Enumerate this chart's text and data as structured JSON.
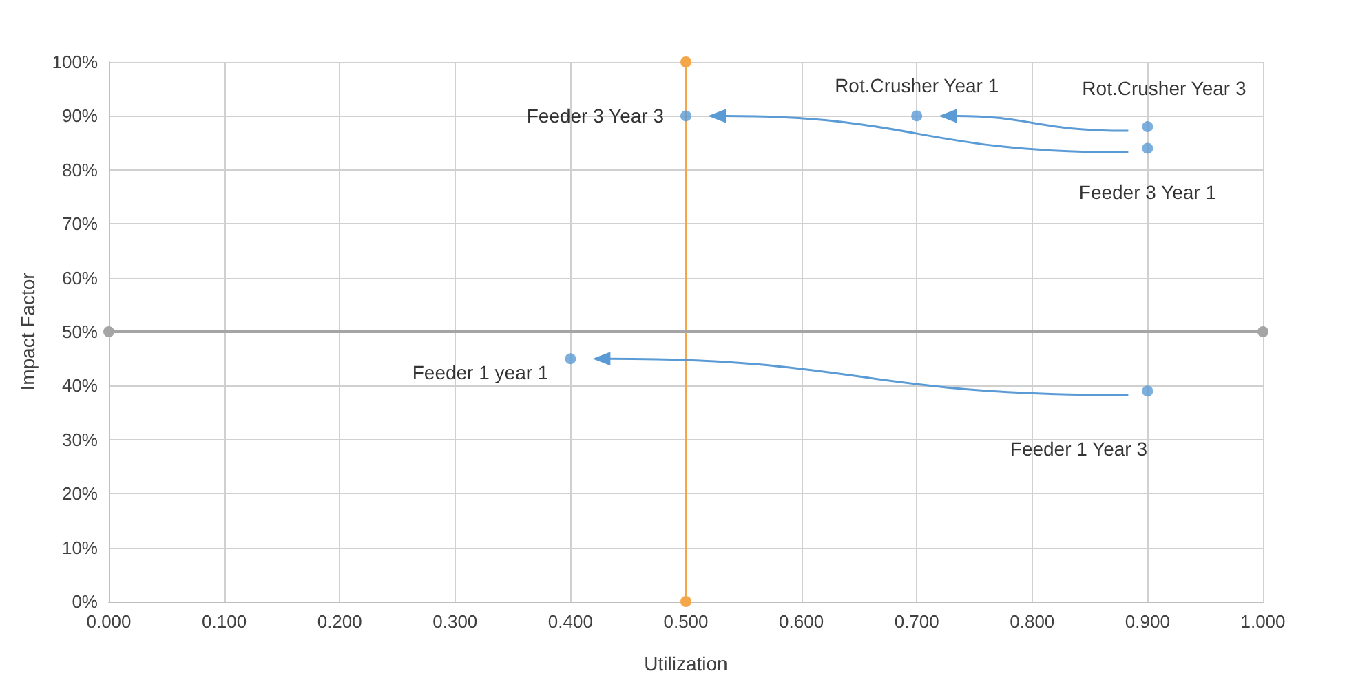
{
  "chart_data": {
    "type": "scatter",
    "xlabel": "Utilization",
    "ylabel": "Impact Factor",
    "xlim": [
      0,
      1
    ],
    "ylim": [
      0,
      1
    ],
    "xticks": [
      {
        "value": 0,
        "label": "0.000"
      },
      {
        "value": 0.1,
        "label": "0.100"
      },
      {
        "value": 0.2,
        "label": "0.200"
      },
      {
        "value": 0.3,
        "label": "0.300"
      },
      {
        "value": 0.4,
        "label": "0.400"
      },
      {
        "value": 0.5,
        "label": "0.500"
      },
      {
        "value": 0.6,
        "label": "0.600"
      },
      {
        "value": 0.7,
        "label": "0.700"
      },
      {
        "value": 0.8,
        "label": "0.800"
      },
      {
        "value": 0.9,
        "label": "0.900"
      },
      {
        "value": 1,
        "label": "1.000"
      }
    ],
    "yticks": [
      {
        "value": 0,
        "label": "0%"
      },
      {
        "value": 0.1,
        "label": "10%"
      },
      {
        "value": 0.2,
        "label": "20%"
      },
      {
        "value": 0.3,
        "label": "30%"
      },
      {
        "value": 0.4,
        "label": "40%"
      },
      {
        "value": 0.5,
        "label": "50%"
      },
      {
        "value": 0.6,
        "label": "60%"
      },
      {
        "value": 0.7,
        "label": "70%"
      },
      {
        "value": 0.8,
        "label": "80%"
      },
      {
        "value": 0.9,
        "label": "90%"
      },
      {
        "value": 1,
        "label": "100%"
      }
    ],
    "grid": true,
    "marker": "circle",
    "series": [
      {
        "color": "#5b9bd5",
        "x": [
          0.5,
          0.7,
          0.9,
          0.9,
          0.4,
          0.9
        ],
        "values": [
          0.9,
          0.9,
          0.88,
          0.84,
          0.45,
          0.39
        ]
      },
      {
        "type": "line",
        "color": "#f4a64a",
        "x": [
          0.5,
          0.5
        ],
        "values": [
          0,
          1
        ]
      },
      {
        "type": "line",
        "color": "#a5a5a5",
        "x": [
          0,
          1
        ],
        "values": [
          0.5,
          0.5
        ]
      }
    ],
    "annotations": [
      {
        "text": "Feeder 3 Year 3",
        "x": 0.5,
        "y": 0.9
      },
      {
        "text": "Rot.Crusher Year 1",
        "x": 0.7,
        "y": 0.9
      },
      {
        "text": "Rot.Crusher Year 3",
        "x": 0.9,
        "y": 0.88
      },
      {
        "text": "Feeder 3 Year 1",
        "x": 0.9,
        "y": 0.84
      },
      {
        "text": "Feeder 1 year 1",
        "x": 0.4,
        "y": 0.45
      },
      {
        "text": "Feeder 1 Year 3",
        "x": 0.9,
        "y": 0.39
      }
    ]
  }
}
